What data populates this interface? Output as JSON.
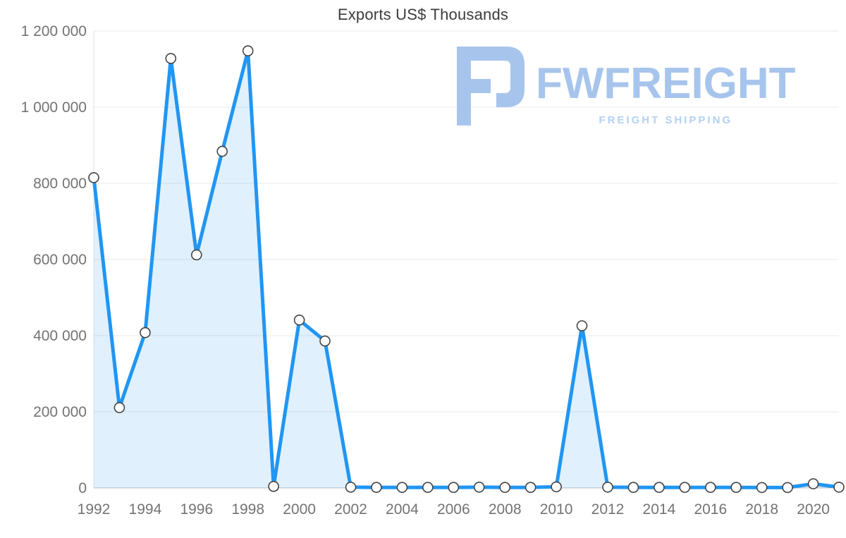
{
  "chart_data": {
    "type": "area",
    "title": "Exports US$ Thousands",
    "x": [
      1992,
      1993,
      1994,
      1995,
      1996,
      1997,
      1998,
      1999,
      2000,
      2001,
      2002,
      2003,
      2004,
      2005,
      2006,
      2007,
      2008,
      2009,
      2010,
      2011,
      2012,
      2013,
      2014,
      2015,
      2016,
      2017,
      2018,
      2019,
      2020,
      2021
    ],
    "values": [
      815000,
      211000,
      408000,
      1128000,
      612000,
      884000,
      1148000,
      4000,
      441000,
      386000,
      2000,
      1500,
      1500,
      1500,
      1500,
      2000,
      1500,
      1500,
      3000,
      426000,
      2000,
      1500,
      1500,
      1500,
      1500,
      1500,
      1200,
      1200,
      11000,
      2000
    ],
    "xlabel": "",
    "ylabel": "",
    "ylim": [
      0,
      1200000
    ],
    "yticks": [
      0,
      200000,
      400000,
      600000,
      800000,
      1000000,
      1200000
    ],
    "ytick_labels": [
      "0",
      "200 000",
      "400 000",
      "600 000",
      "800 000",
      "1 000 000",
      "1 200 000"
    ],
    "xticks": [
      1992,
      1994,
      1996,
      1998,
      2000,
      2002,
      2004,
      2006,
      2008,
      2010,
      2012,
      2014,
      2016,
      2018,
      2020
    ],
    "grid": true,
    "legend_position": "none",
    "line_color": "#2196f3",
    "area_color": "rgba(33,150,243,0.14)",
    "marker_fill": "#ffffff",
    "marker_stroke": "#444444",
    "gridline_color": "#e8e8e8",
    "axis_line_color": "#bdbdbd",
    "tick_label_color": "#737373"
  },
  "watermark": {
    "brand": "FWFREIGHT",
    "tagline": "FREIGHT SHIPPING",
    "color": "#a7c5ec"
  }
}
